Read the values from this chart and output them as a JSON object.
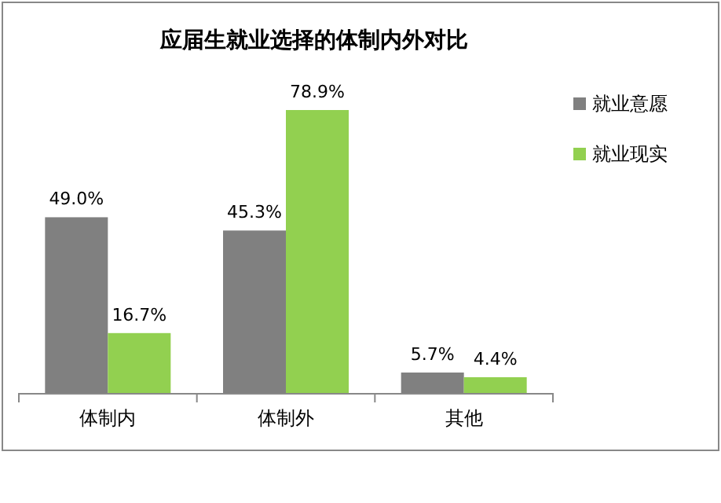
{
  "chart_data": {
    "type": "bar",
    "title": "应届生就业选择的体制内外对比",
    "categories": [
      "体制内",
      "体制外",
      "其他"
    ],
    "series": [
      {
        "name": "就业意愿",
        "color": "#808080",
        "values": [
          49.0,
          45.3,
          5.7
        ],
        "value_labels": [
          "49.0%",
          "45.3%",
          "5.7%"
        ]
      },
      {
        "name": "就业现实",
        "color": "#92d050",
        "values": [
          16.7,
          78.9,
          4.4
        ],
        "value_labels": [
          "16.7%",
          "78.9%",
          "4.4%"
        ]
      }
    ],
    "legend": "right"
  }
}
